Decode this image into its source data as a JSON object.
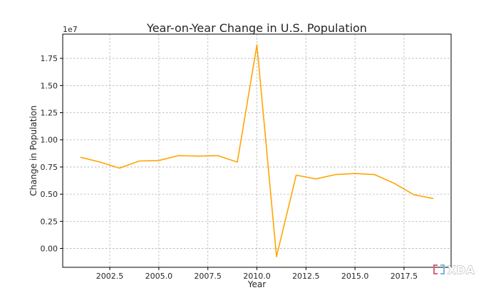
{
  "chart_data": {
    "type": "line",
    "title": "Year-on-Year Change in U.S. Population",
    "xlabel": "Year",
    "ylabel": "Change in Population",
    "y_offset_label": "1e7",
    "x": [
      2001,
      2002,
      2003,
      2004,
      2005,
      2006,
      2007,
      2008,
      2009,
      2010,
      2011,
      2012,
      2013,
      2014,
      2015,
      2016,
      2017,
      2018,
      2019
    ],
    "series": [
      {
        "values": [
          8400000,
          7950000,
          7400000,
          8050000,
          8100000,
          8550000,
          8500000,
          8550000,
          7950000,
          18750000,
          -750000,
          6750000,
          6400000,
          6800000,
          6900000,
          6800000,
          6000000,
          4950000,
          4600000
        ],
        "color": "#FFA500"
      }
    ],
    "xticks": [
      2002.5,
      2005.0,
      2007.5,
      2010.0,
      2012.5,
      2015.0,
      2017.5
    ],
    "xtick_labels": [
      "2002.5",
      "2005.0",
      "2007.5",
      "2010.0",
      "2012.5",
      "2015.0",
      "2017.5"
    ],
    "yticks": [
      0,
      2500000,
      5000000,
      7500000,
      10000000,
      12500000,
      15000000,
      17500000
    ],
    "ytick_labels": [
      "0.00",
      "0.25",
      "0.50",
      "0.75",
      "1.00",
      "1.25",
      "1.50",
      "1.75"
    ],
    "xlim": [
      2000.1,
      2019.9
    ],
    "ylim": [
      -1730000,
      19730000
    ],
    "grid": true
  },
  "watermark": {
    "text": "XDA",
    "icon": "xda-logo-icon",
    "color": "#e0607a"
  }
}
